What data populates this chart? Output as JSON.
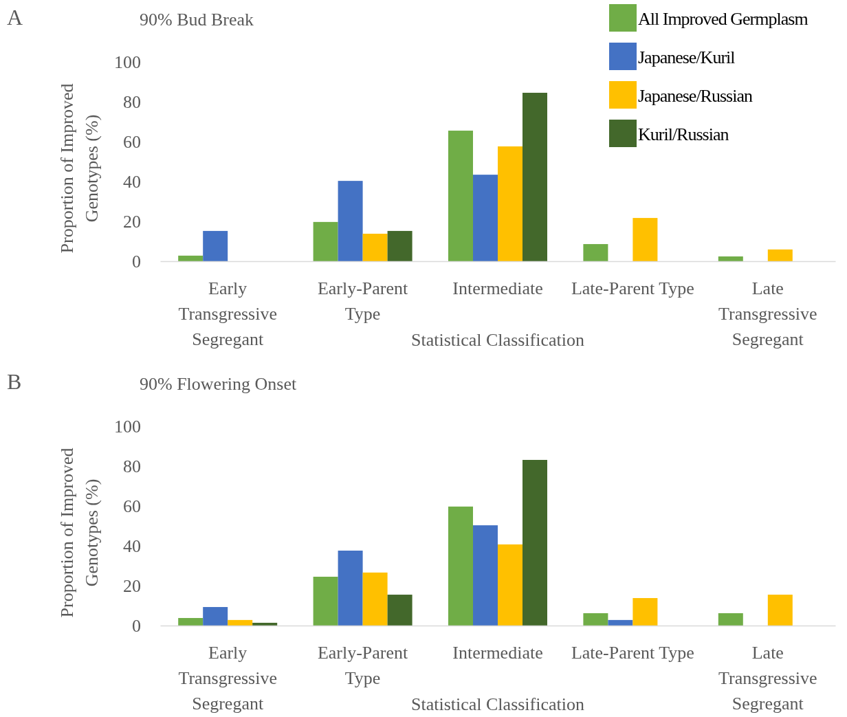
{
  "chart_data": [
    {
      "type": "bar",
      "title": "90% Bud Break",
      "xlabel": "Statistical Classification",
      "ylabel": "Proportion of Improved Genotypes (%)",
      "annotations": [
        "A"
      ],
      "categories": [
        "Early Transgressive Segregant",
        "Early-Parent Type",
        "Intermediate",
        "Late-Parent Type",
        "Late Transgressive Segregant"
      ],
      "series": [
        {
          "name": "All Improved Germplasm",
          "color": "#70ad47",
          "values": [
            2.8,
            19.7,
            65.5,
            8.6,
            2.4
          ]
        },
        {
          "name": "Japanese/Kuril",
          "color": "#4472c4",
          "values": [
            15.2,
            40.3,
            43.4,
            0,
            0
          ]
        },
        {
          "name": "Japanese/Russian",
          "color": "#ffc000",
          "values": [
            0,
            13.8,
            57.6,
            21.7,
            5.9
          ]
        },
        {
          "name": "Kuril/Russian",
          "color": "#43682b",
          "values": [
            0,
            15.2,
            84.5,
            0,
            0
          ]
        }
      ],
      "ylim": [
        0,
        100
      ],
      "yticks": [
        0,
        20,
        40,
        60,
        80,
        100
      ],
      "grid": false,
      "legend": "top right"
    },
    {
      "type": "bar",
      "title": "90% Flowering Onset",
      "xlabel": "Statistical Classification",
      "ylabel": "Proportion of Improved Genotypes (%)",
      "annotations": [
        "B"
      ],
      "categories": [
        "Early Transgressive Segregant",
        "Early-Parent Type",
        "Intermediate",
        "Late-Parent Type",
        "Late Transgressive Segregant"
      ],
      "series": [
        {
          "color": "#70ad47",
          "values": [
            3.8,
            24.5,
            59.7,
            6.2,
            6.2
          ]
        },
        {
          "color": "#4472c4",
          "values": [
            9.3,
            37.6,
            50.3,
            2.8,
            0
          ]
        },
        {
          "color": "#ffc000",
          "values": [
            2.8,
            26.6,
            40.7,
            13.8,
            15.5
          ]
        },
        {
          "color": "#43682b",
          "values": [
            1.4,
            15.5,
            83.1,
            0,
            0
          ]
        }
      ],
      "ylim": [
        0,
        100
      ],
      "yticks": [
        0,
        20,
        40,
        60,
        80,
        100
      ],
      "grid": false,
      "legend": false
    }
  ]
}
